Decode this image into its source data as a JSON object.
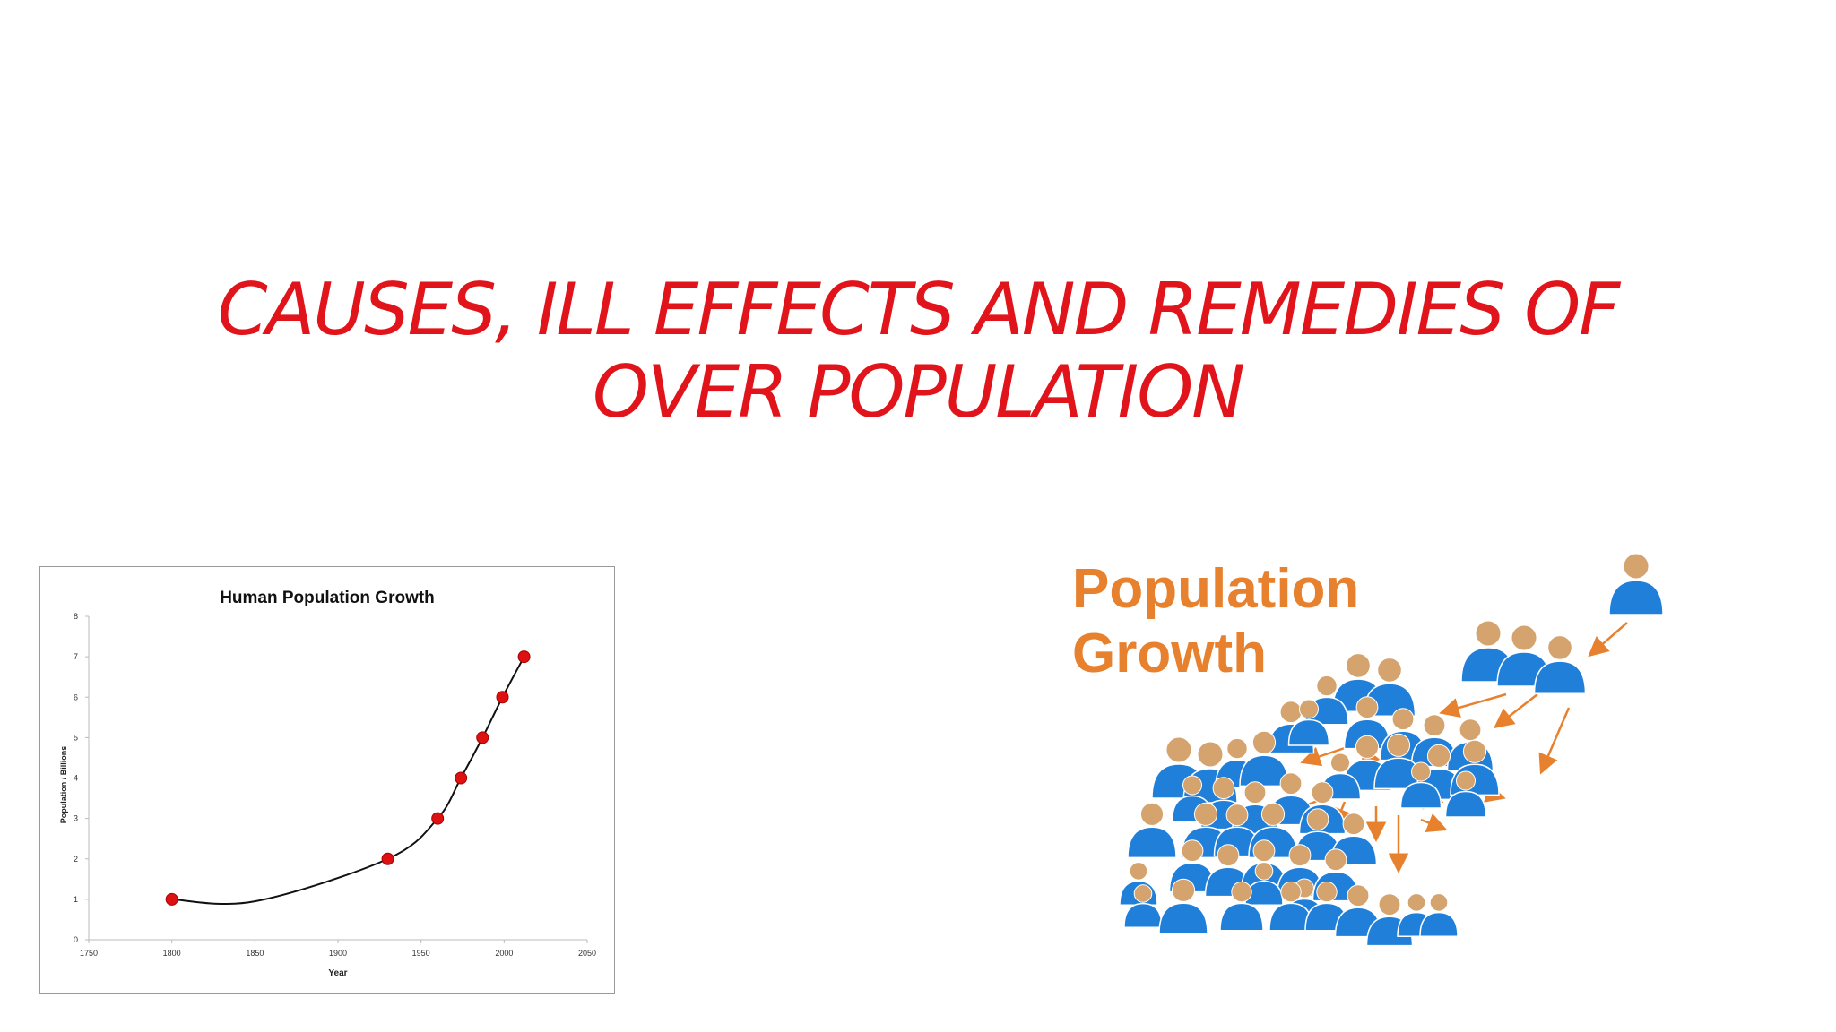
{
  "slide": {
    "title_line1": "CAUSES, ILL EFFECTS AND REMEDIES OF",
    "title_line2": "OVER POPULATION"
  },
  "chart_data": {
    "type": "scatter",
    "title": "Human Population Growth",
    "xlabel": "Year",
    "ylabel": "Population / Billions",
    "xlim": [
      1750,
      2050
    ],
    "ylim": [
      0,
      8
    ],
    "x_ticks": [
      1750,
      1800,
      1850,
      1900,
      1950,
      2000,
      2050
    ],
    "y_ticks": [
      0,
      1,
      2,
      3,
      4,
      5,
      6,
      7,
      8
    ],
    "grid": false,
    "trend_line": true,
    "series": [
      {
        "x": [
          1800,
          1930,
          1960,
          1974,
          1987,
          1999,
          2012
        ],
        "y": [
          1,
          2,
          3,
          4,
          5,
          6,
          7
        ]
      }
    ],
    "marker_color": "#dd1111",
    "line_color": "#111111"
  },
  "illustration": {
    "label_line1": "Population",
    "label_line2": "Growth",
    "label_color": "#e7812d",
    "head_color": "#d4a36e",
    "body_color": "#1f7fd9",
    "arrow_color": "#e7812d"
  }
}
